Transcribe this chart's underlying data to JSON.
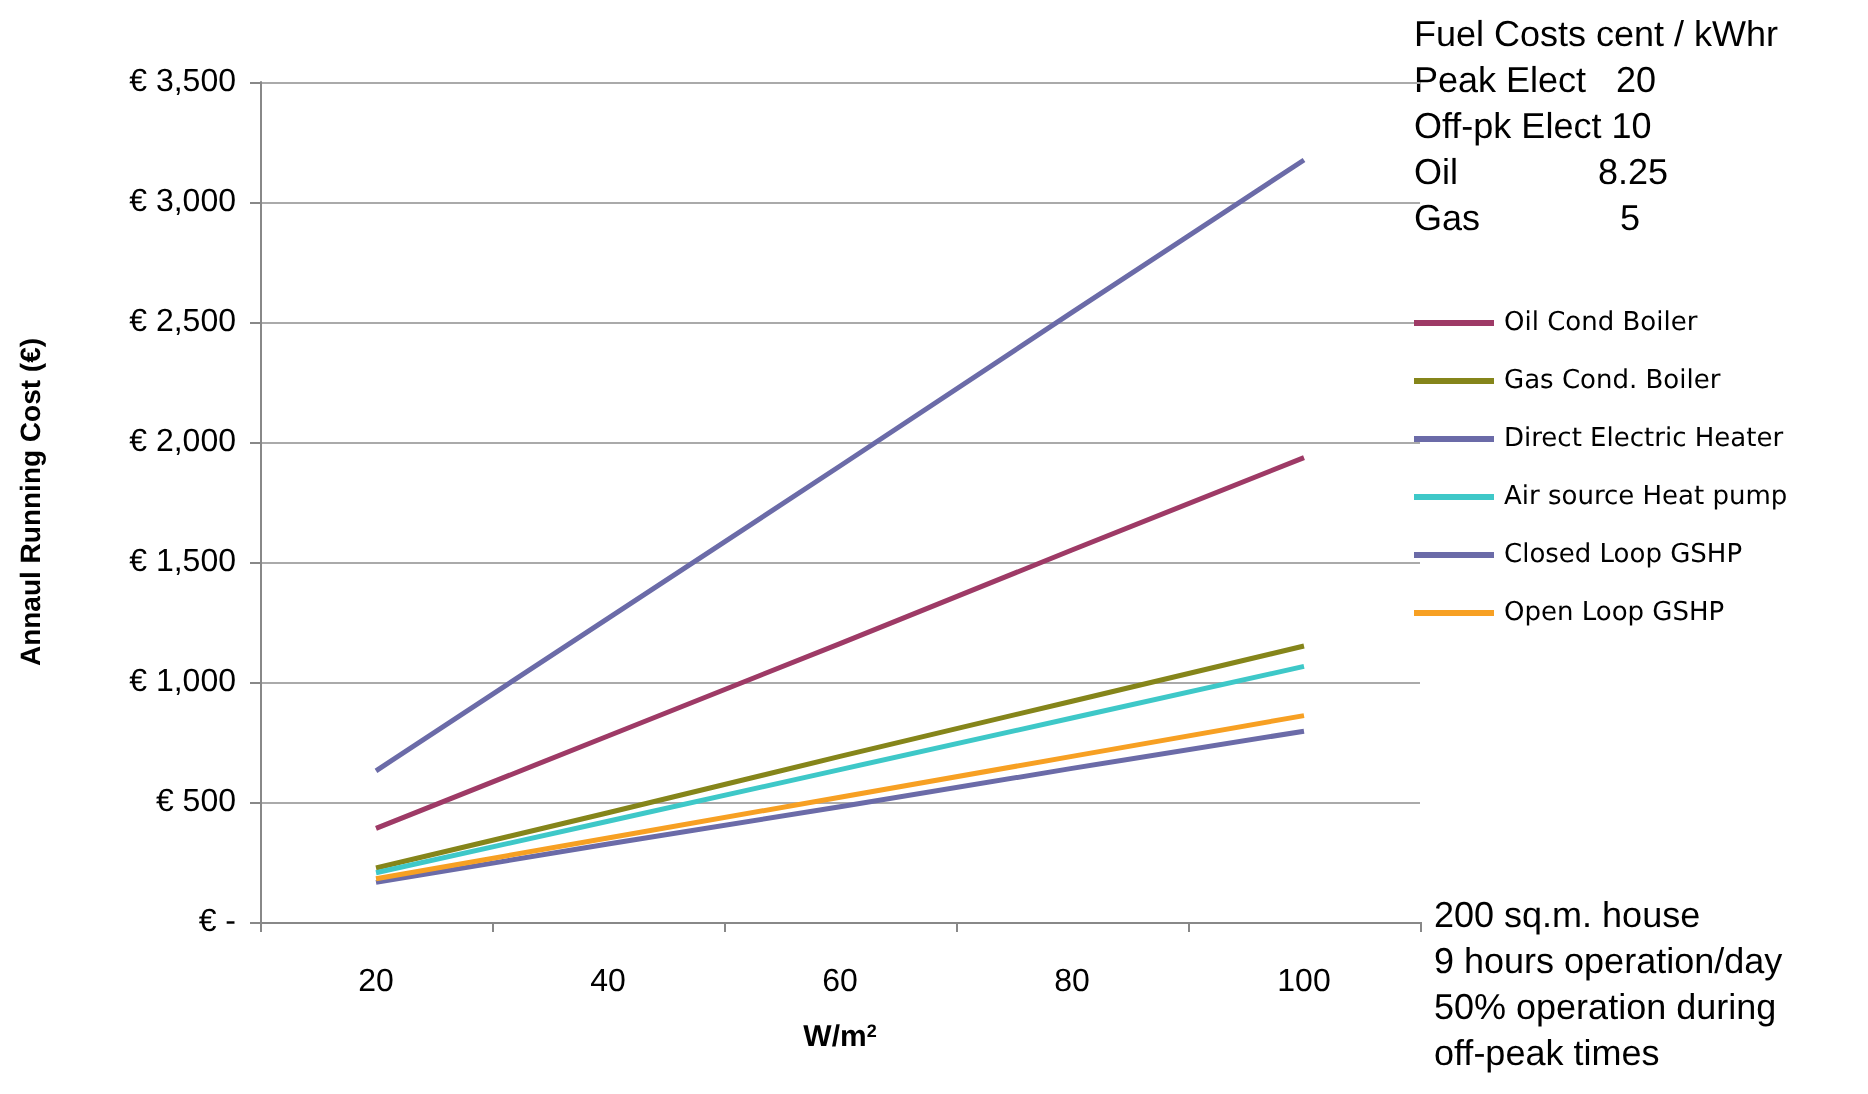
{
  "chart_data": {
    "type": "line",
    "xlabel": "W/m$^{2}$",
    "ylabel": "Annaul Running Cost (€)",
    "categories": [
      "20",
      "40",
      "60",
      "80",
      "100"
    ],
    "series": [
      {
        "name": "Oil Cond Boiler",
        "color": "#9e3a66",
        "values": [
          390,
          775,
          1160,
          1550,
          1935
        ]
      },
      {
        "name": "Gas Cond. Boiler",
        "color": "#85851a",
        "values": [
          225,
          455,
          690,
          920,
          1150
        ]
      },
      {
        "name": "Direct Electric Heater",
        "color": "#6b6ba8",
        "values": [
          630,
          1265,
          1900,
          2540,
          3175
        ]
      },
      {
        "name": "Air source Heat pump",
        "color": "#3ec8c8",
        "values": [
          205,
          420,
          635,
          850,
          1065
        ]
      },
      {
        "name": "Closed Loop GSHP",
        "color": "#6b6ba8",
        "values": [
          165,
          325,
          480,
          640,
          795
        ]
      },
      {
        "name": "Open Loop GSHP",
        "color": "#f7a023",
        "values": [
          180,
          350,
          520,
          690,
          860
        ]
      }
    ],
    "ylim": [
      0,
      3500
    ],
    "yticks": [
      {
        "value": 0,
        "label": "€ -"
      },
      {
        "value": 500,
        "label": "€ 500"
      },
      {
        "value": 1000,
        "label": "€ 1,000"
      },
      {
        "value": 1500,
        "label": "€ 1,500"
      },
      {
        "value": 2000,
        "label": "€ 2,000"
      },
      {
        "value": 2500,
        "label": "€ 2,500"
      },
      {
        "value": 3000,
        "label": "€ 3,000"
      },
      {
        "value": 3500,
        "label": "€ 3,500"
      }
    ],
    "grid": "y",
    "legend": "right",
    "marker": "none",
    "line_style": "solid",
    "annotations": [
      "Fuel Costs cent / kWhr",
      "Peak Elect   20",
      "Off-pk Elect 10",
      "Oil              8.25",
      "Gas              5",
      "200 sq.m. house\n9 hours operation/day\n50% operation during\noff-peak times"
    ]
  }
}
